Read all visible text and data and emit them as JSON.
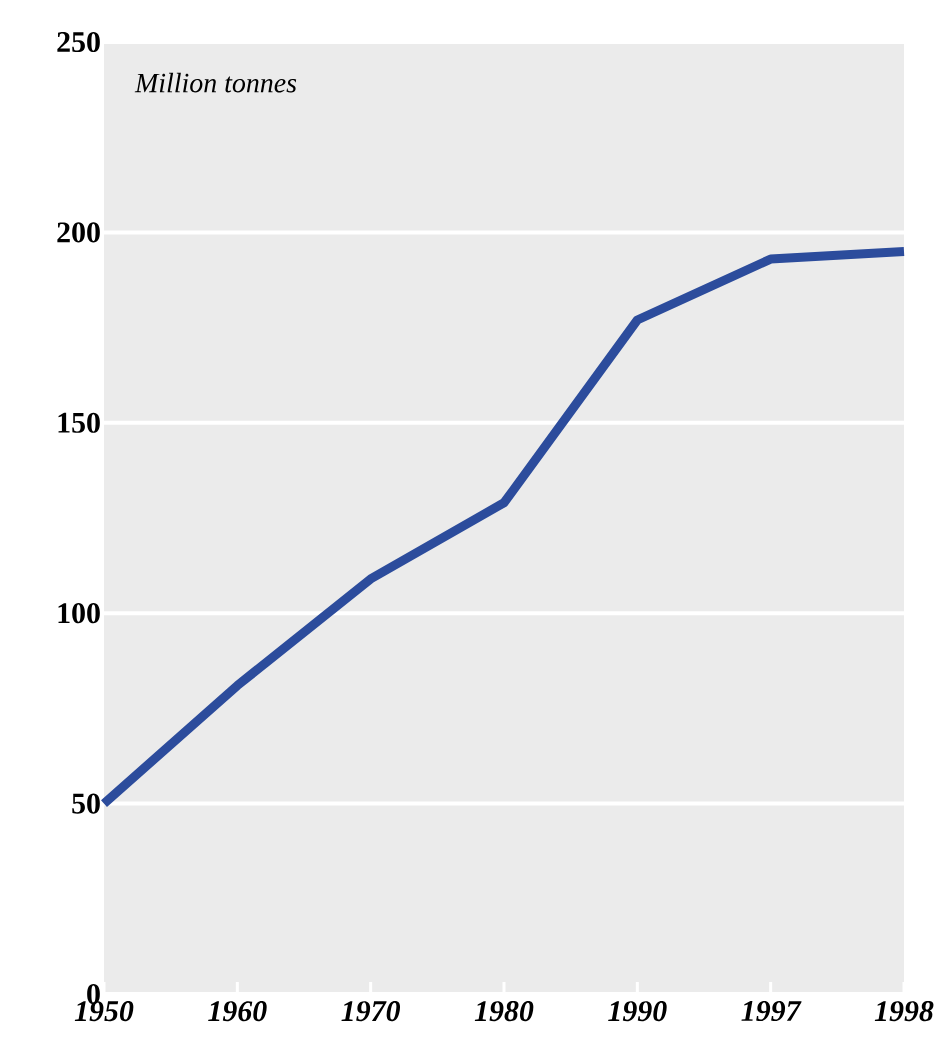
{
  "chart_data": {
    "type": "line",
    "ylabel": "Million tonnes",
    "categories": [
      "1950",
      "1960",
      "1970",
      "1980",
      "1990",
      "1997",
      "1998"
    ],
    "series": [
      {
        "color": "#2c4c9c",
        "values": [
          50,
          81,
          109,
          129,
          177,
          193,
          195
        ]
      }
    ],
    "ylim": [
      0,
      250
    ],
    "yticks": [
      0,
      50,
      100,
      150,
      200,
      250
    ],
    "grid": "y",
    "marker": "none",
    "line_style": "solid"
  }
}
